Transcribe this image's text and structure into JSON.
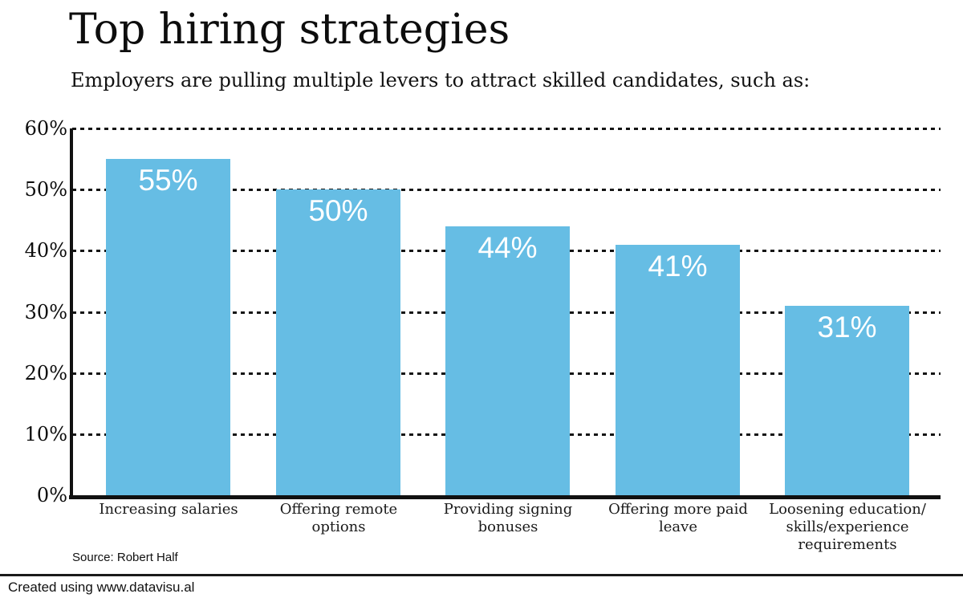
{
  "page": {
    "title": "Top hiring strategies",
    "subtitle": "Employers are pulling multiple levers to attract skilled candidates, such as:",
    "source": "Source: Robert Half"
  },
  "footer": {
    "credit": "Created using www.datavisu.al"
  },
  "colors": {
    "bar": "#66bde4",
    "grid": "#141414",
    "axis": "#111111",
    "value_label": "#ffffff"
  },
  "chart_data": {
    "type": "bar",
    "title": "Top hiring strategies",
    "subtitle": "Employers are pulling multiple levers to attract skilled candidates, such as:",
    "categories": [
      "Increasing salaries",
      "Offering remote\noptions",
      "Providing signing\nbonuses",
      "Offering more paid\nleave",
      "Loosening education/\nskills/experience\nrequirements"
    ],
    "values": [
      55,
      50,
      44,
      41,
      31
    ],
    "value_labels": [
      "55%",
      "50%",
      "44%",
      "41%",
      "31%"
    ],
    "yticks": [
      {
        "value": 60,
        "label": "60%"
      },
      {
        "value": 50,
        "label": "50%"
      },
      {
        "value": 40,
        "label": "40%"
      },
      {
        "value": 30,
        "label": "30%"
      },
      {
        "value": 20,
        "label": "20%"
      },
      {
        "value": 10,
        "label": "10%"
      },
      {
        "value": 0,
        "label": "0%"
      }
    ],
    "ylim": [
      0,
      60
    ],
    "grid": "horizontal-dotted",
    "legend": "none",
    "source": "Source: Robert Half"
  }
}
